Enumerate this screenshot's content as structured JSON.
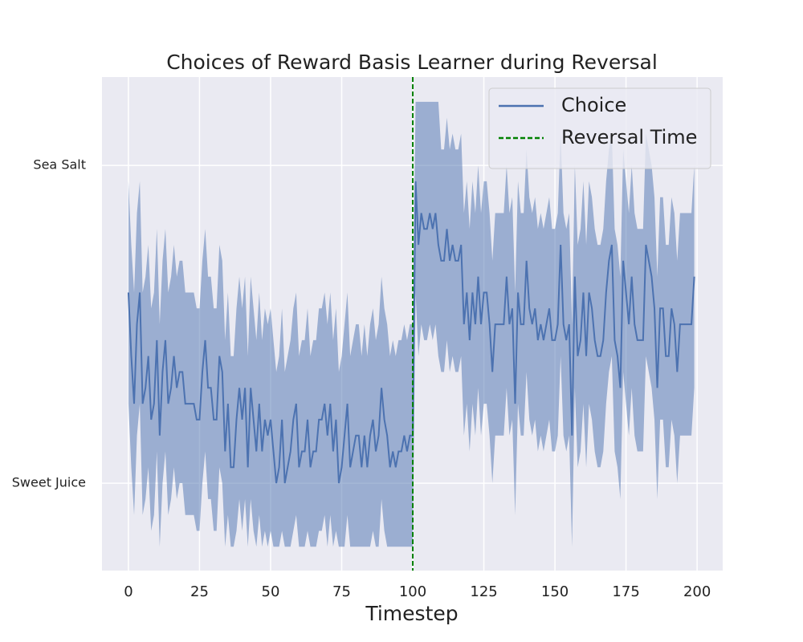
{
  "chart_data": {
    "type": "line",
    "title": "Choices of Reward Basis Learner during Reversal",
    "xlabel": "Timestep",
    "x": [
      0,
      1,
      2,
      3,
      4,
      5,
      6,
      7,
      8,
      9,
      10,
      11,
      12,
      13,
      14,
      15,
      16,
      17,
      18,
      19,
      20,
      21,
      22,
      23,
      24,
      25,
      26,
      27,
      28,
      29,
      30,
      31,
      32,
      33,
      34,
      35,
      36,
      37,
      38,
      39,
      40,
      41,
      42,
      43,
      44,
      45,
      46,
      47,
      48,
      49,
      50,
      51,
      52,
      53,
      54,
      55,
      56,
      57,
      58,
      59,
      60,
      61,
      62,
      63,
      64,
      65,
      66,
      67,
      68,
      69,
      70,
      71,
      72,
      73,
      74,
      75,
      76,
      77,
      78,
      79,
      80,
      81,
      82,
      83,
      84,
      85,
      86,
      87,
      88,
      89,
      90,
      91,
      92,
      93,
      94,
      95,
      96,
      97,
      98,
      99,
      100,
      101,
      102,
      103,
      104,
      105,
      106,
      107,
      108,
      109,
      110,
      111,
      112,
      113,
      114,
      115,
      116,
      117,
      118,
      119,
      120,
      121,
      122,
      123,
      124,
      125,
      126,
      127,
      128,
      129,
      130,
      131,
      132,
      133,
      134,
      135,
      136,
      137,
      138,
      139,
      140,
      141,
      142,
      143,
      144,
      145,
      146,
      147,
      148,
      149,
      150,
      151,
      152,
      153,
      154,
      155,
      156,
      157,
      158,
      159,
      160,
      161,
      162,
      163,
      164,
      165,
      166,
      167,
      168,
      169,
      170,
      171,
      172,
      173,
      174,
      175,
      176,
      177,
      178,
      179,
      180,
      181,
      182,
      183,
      184,
      185,
      186,
      187,
      188,
      189,
      190,
      191,
      192,
      193,
      194,
      195,
      196,
      197,
      198,
      199
    ],
    "series": [
      {
        "name": "Choice",
        "color": "#4c72b0",
        "values": [
          0.6,
          0.4,
          0.25,
          0.5,
          0.6,
          0.25,
          0.3,
          0.4,
          0.2,
          0.25,
          0.45,
          0.15,
          0.35,
          0.45,
          0.25,
          0.3,
          0.4,
          0.3,
          0.35,
          0.35,
          0.25,
          0.25,
          0.25,
          0.25,
          0.2,
          0.2,
          0.35,
          0.45,
          0.3,
          0.3,
          0.2,
          0.2,
          0.4,
          0.35,
          0.1,
          0.25,
          0.05,
          0.05,
          0.2,
          0.3,
          0.2,
          0.3,
          0.05,
          0.3,
          0.2,
          0.1,
          0.25,
          0.1,
          0.2,
          0.15,
          0.2,
          0.1,
          0.0,
          0.05,
          0.2,
          0.0,
          0.05,
          0.1,
          0.2,
          0.25,
          0.05,
          0.1,
          0.1,
          0.2,
          0.05,
          0.1,
          0.1,
          0.2,
          0.2,
          0.25,
          0.15,
          0.25,
          0.1,
          0.2,
          0.0,
          0.05,
          0.15,
          0.25,
          0.05,
          0.1,
          0.15,
          0.15,
          0.05,
          0.15,
          0.05,
          0.15,
          0.2,
          0.1,
          0.15,
          0.3,
          0.2,
          0.15,
          0.05,
          0.1,
          0.05,
          0.1,
          0.1,
          0.15,
          0.1,
          0.15,
          0.15,
          0.95,
          0.75,
          0.85,
          0.8,
          0.8,
          0.85,
          0.8,
          0.85,
          0.75,
          0.7,
          0.7,
          0.8,
          0.7,
          0.75,
          0.7,
          0.7,
          0.75,
          0.5,
          0.6,
          0.45,
          0.6,
          0.5,
          0.65,
          0.5,
          0.6,
          0.6,
          0.5,
          0.35,
          0.5,
          0.5,
          0.5,
          0.5,
          0.65,
          0.5,
          0.55,
          0.25,
          0.6,
          0.5,
          0.5,
          0.7,
          0.55,
          0.5,
          0.55,
          0.45,
          0.5,
          0.45,
          0.5,
          0.55,
          0.45,
          0.45,
          0.5,
          0.75,
          0.5,
          0.45,
          0.5,
          0.15,
          0.65,
          0.4,
          0.45,
          0.6,
          0.4,
          0.6,
          0.55,
          0.45,
          0.4,
          0.4,
          0.45,
          0.6,
          0.7,
          0.75,
          0.45,
          0.4,
          0.3,
          0.7,
          0.6,
          0.5,
          0.65,
          0.5,
          0.45,
          0.45,
          0.45,
          0.75,
          0.7,
          0.65,
          0.55,
          0.3,
          0.55,
          0.55,
          0.4,
          0.4,
          0.55,
          0.5,
          0.35,
          0.5,
          0.5,
          0.5,
          0.5,
          0.5,
          0.65
        ],
        "ci_upper": [
          0.95,
          0.75,
          0.6,
          0.85,
          0.95,
          0.6,
          0.65,
          0.75,
          0.55,
          0.6,
          0.8,
          0.5,
          0.7,
          0.8,
          0.6,
          0.65,
          0.75,
          0.65,
          0.7,
          0.7,
          0.6,
          0.6,
          0.6,
          0.6,
          0.55,
          0.55,
          0.7,
          0.8,
          0.65,
          0.65,
          0.55,
          0.55,
          0.75,
          0.7,
          0.45,
          0.6,
          0.4,
          0.4,
          0.55,
          0.65,
          0.55,
          0.65,
          0.4,
          0.65,
          0.55,
          0.45,
          0.6,
          0.45,
          0.55,
          0.5,
          0.55,
          0.45,
          0.35,
          0.4,
          0.55,
          0.35,
          0.4,
          0.45,
          0.55,
          0.6,
          0.4,
          0.45,
          0.45,
          0.55,
          0.4,
          0.45,
          0.45,
          0.55,
          0.55,
          0.6,
          0.5,
          0.6,
          0.45,
          0.55,
          0.35,
          0.4,
          0.5,
          0.6,
          0.4,
          0.45,
          0.5,
          0.5,
          0.4,
          0.5,
          0.4,
          0.5,
          0.55,
          0.45,
          0.5,
          0.65,
          0.55,
          0.5,
          0.4,
          0.45,
          0.4,
          0.45,
          0.45,
          0.5,
          0.45,
          0.5,
          0.5,
          1.2,
          1.2,
          1.2,
          1.2,
          1.2,
          1.2,
          1.2,
          1.2,
          1.2,
          1.05,
          1.05,
          1.15,
          1.05,
          1.1,
          1.05,
          1.05,
          1.1,
          0.85,
          0.95,
          0.8,
          0.95,
          0.85,
          1.0,
          0.85,
          0.95,
          0.95,
          0.85,
          0.7,
          0.85,
          0.85,
          0.85,
          0.85,
          1.0,
          0.85,
          0.9,
          0.6,
          0.95,
          0.85,
          0.85,
          1.05,
          0.9,
          0.85,
          0.9,
          0.8,
          0.85,
          0.8,
          0.85,
          0.9,
          0.8,
          0.8,
          0.85,
          1.1,
          0.85,
          0.8,
          0.85,
          0.5,
          1.0,
          0.75,
          0.8,
          0.95,
          0.75,
          0.95,
          0.9,
          0.8,
          0.75,
          0.75,
          0.8,
          0.95,
          1.05,
          1.1,
          0.8,
          0.75,
          0.65,
          1.05,
          0.95,
          0.85,
          1.0,
          0.85,
          0.8,
          0.8,
          0.8,
          1.1,
          1.05,
          1.0,
          0.9,
          0.65,
          0.9,
          0.9,
          0.75,
          0.75,
          0.9,
          0.85,
          0.7,
          0.85,
          0.85,
          0.85,
          0.85,
          0.85,
          1.0
        ],
        "ci_lower": [
          0.25,
          0.05,
          -0.1,
          0.15,
          0.25,
          -0.1,
          -0.05,
          0.05,
          -0.15,
          -0.1,
          0.1,
          -0.2,
          0,
          0.1,
          -0.1,
          -0.05,
          0.05,
          -0.05,
          0,
          0,
          -0.1,
          -0.1,
          -0.1,
          -0.1,
          -0.15,
          -0.15,
          0,
          0.1,
          -0.05,
          -0.05,
          -0.15,
          -0.15,
          0.05,
          0,
          -0.2,
          -0.1,
          -0.2,
          -0.2,
          -0.15,
          -0.05,
          -0.15,
          -0.05,
          -0.2,
          -0.05,
          -0.15,
          -0.2,
          -0.1,
          -0.2,
          -0.15,
          -0.2,
          -0.15,
          -0.2,
          -0.2,
          -0.2,
          -0.15,
          -0.2,
          -0.2,
          -0.2,
          -0.15,
          -0.1,
          -0.2,
          -0.2,
          -0.2,
          -0.15,
          -0.2,
          -0.2,
          -0.2,
          -0.15,
          -0.15,
          -0.1,
          -0.2,
          -0.1,
          -0.2,
          -0.15,
          -0.2,
          -0.2,
          -0.2,
          -0.1,
          -0.2,
          -0.2,
          -0.2,
          -0.2,
          -0.2,
          -0.2,
          -0.2,
          -0.2,
          -0.15,
          -0.2,
          -0.2,
          -0.05,
          -0.15,
          -0.2,
          -0.2,
          -0.2,
          -0.2,
          -0.2,
          -0.2,
          -0.2,
          -0.2,
          -0.2,
          -0.2,
          0.6,
          0.4,
          0.5,
          0.45,
          0.45,
          0.5,
          0.45,
          0.5,
          0.4,
          0.35,
          0.35,
          0.45,
          0.35,
          0.4,
          0.35,
          0.35,
          0.4,
          0.15,
          0.25,
          0.1,
          0.25,
          0.15,
          0.3,
          0.15,
          0.25,
          0.25,
          0.15,
          0,
          0.15,
          0.15,
          0.15,
          0.15,
          0.3,
          0.15,
          0.2,
          -0.1,
          0.25,
          0.15,
          0.15,
          0.35,
          0.2,
          0.15,
          0.2,
          0.1,
          0.15,
          0.1,
          0.15,
          0.2,
          0.1,
          0.1,
          0.15,
          0.4,
          0.15,
          0.1,
          0.15,
          -0.2,
          0.3,
          0.05,
          0.1,
          0.25,
          0.05,
          0.25,
          0.2,
          0.1,
          0.05,
          0.05,
          0.1,
          0.25,
          0.35,
          0.4,
          0.1,
          0.05,
          -0.05,
          0.35,
          0.25,
          0.15,
          0.3,
          0.15,
          0.1,
          0.1,
          0.1,
          0.4,
          0.35,
          0.3,
          0.2,
          -0.05,
          0.2,
          0.2,
          0.05,
          0.05,
          0.2,
          0.15,
          0,
          0.15,
          0.15,
          0.15,
          0.15,
          0.15,
          0.3
        ]
      }
    ],
    "vlines": [
      {
        "name": "Reversal Time",
        "x": 100,
        "color": "#008000"
      }
    ],
    "xlim": [
      -9.3,
      209
    ],
    "ylim": [
      -0.275,
      1.278
    ],
    "xticks": [
      0,
      25,
      50,
      75,
      100,
      125,
      150,
      175,
      200
    ],
    "yticks": [
      {
        "value": 0,
        "label": "Sweet Juice"
      },
      {
        "value": 1,
        "label": "Sea Salt"
      }
    ],
    "grid": true,
    "legend": "upper right"
  }
}
